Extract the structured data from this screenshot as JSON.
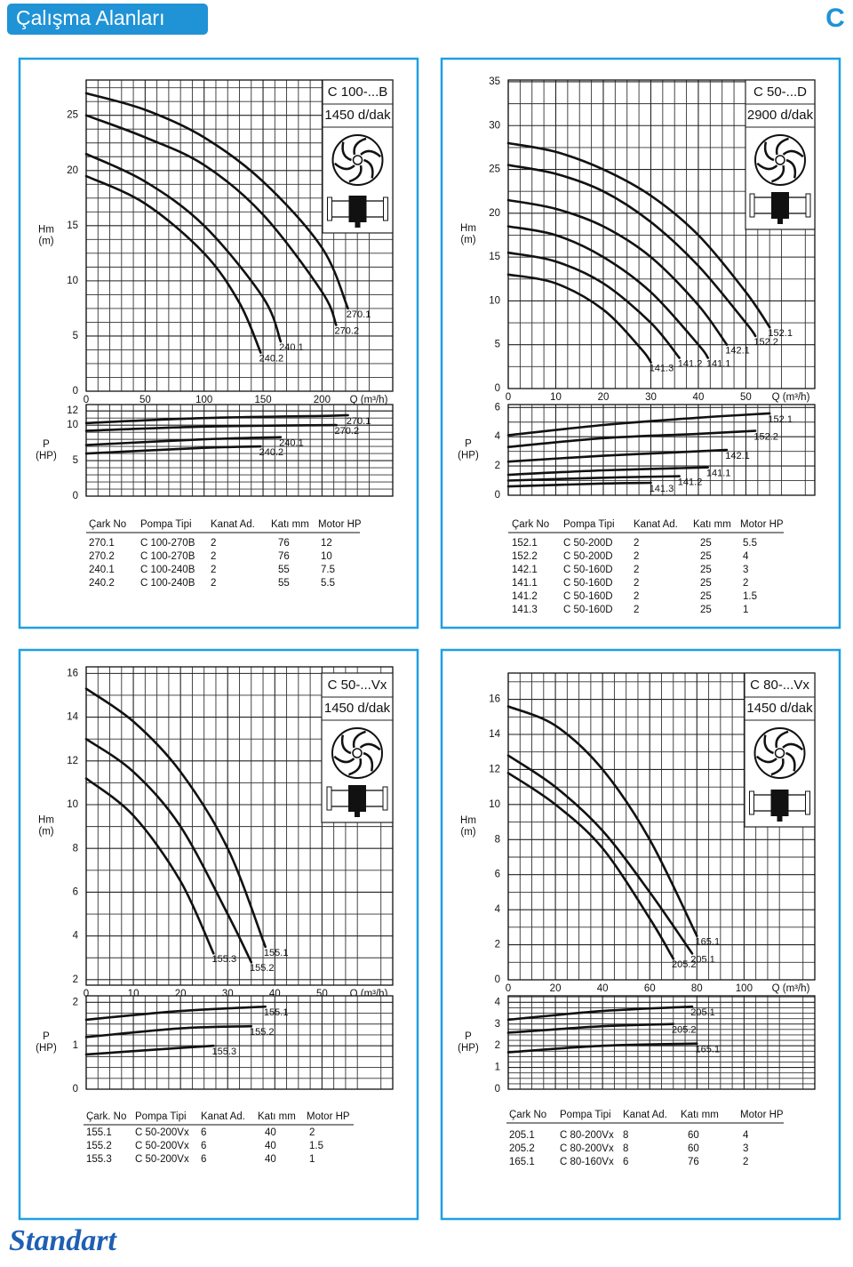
{
  "header": {
    "title": "Çalışma Alanları",
    "section": "C"
  },
  "footer": {
    "logo": "Standart"
  },
  "chart_data": [
    {
      "type": "line",
      "title": "C 100-...B",
      "subtitle": "1450 d/dak",
      "y_label": [
        "Hm",
        "(m)"
      ],
      "x_label": "Q (m³/h)",
      "xlim": [
        0,
        260
      ],
      "xticks": [
        0,
        50,
        100,
        150,
        200
      ],
      "ylim": [
        0,
        28.2
      ],
      "yticks": [
        0,
        5,
        10,
        15,
        20,
        25
      ],
      "grid": true,
      "color": "#111111",
      "series": [
        {
          "name": "270.1",
          "x": [
            0,
            50,
            100,
            150,
            200,
            222
          ],
          "values": [
            27,
            25.5,
            23,
            19,
            13,
            7.5
          ]
        },
        {
          "name": "270.2",
          "x": [
            0,
            50,
            100,
            150,
            200,
            212
          ],
          "values": [
            25,
            23,
            20.5,
            16,
            9,
            6
          ]
        },
        {
          "name": "240.1",
          "x": [
            0,
            50,
            100,
            150,
            165
          ],
          "values": [
            21.5,
            19,
            15,
            8.5,
            4.5
          ]
        },
        {
          "name": "240.2",
          "x": [
            0,
            50,
            100,
            130,
            148
          ],
          "values": [
            19.5,
            17,
            12.5,
            8,
            3.5
          ]
        }
      ]
    },
    {
      "type": "line",
      "y_label": [
        "P",
        "(HP)"
      ],
      "xlim": [
        0,
        260
      ],
      "ylim": [
        0,
        12.9
      ],
      "yticks": [
        0,
        5,
        10,
        12
      ],
      "grid": true,
      "color": "#111111",
      "series": [
        {
          "name": "270.1",
          "x": [
            0,
            100,
            200,
            222
          ],
          "values": [
            10.3,
            11,
            11.3,
            11.4
          ]
        },
        {
          "name": "270.2",
          "x": [
            0,
            100,
            200,
            212
          ],
          "values": [
            9.2,
            9.8,
            10,
            10
          ]
        },
        {
          "name": "240.1",
          "x": [
            0,
            100,
            165
          ],
          "values": [
            7.2,
            8,
            8.3
          ]
        },
        {
          "name": "240.2",
          "x": [
            0,
            100,
            148
          ],
          "values": [
            6,
            6.8,
            7
          ]
        }
      ]
    },
    {
      "type": "line",
      "title": "C 50-...D",
      "subtitle": "2900 d/dak",
      "y_label": [
        "Hm",
        "(m)"
      ],
      "x_label": "Q (m³/h)",
      "xlim": [
        0,
        64.5
      ],
      "xticks": [
        0,
        10,
        20,
        30,
        40,
        50
      ],
      "ylim": [
        0,
        35.2
      ],
      "yticks": [
        0,
        5,
        10,
        15,
        20,
        25,
        30,
        35
      ],
      "grid": true,
      "color": "#111111",
      "series": [
        {
          "name": "152.1",
          "x": [
            0,
            10,
            20,
            30,
            40,
            50,
            55
          ],
          "values": [
            28,
            27,
            25,
            22,
            17.5,
            11,
            7
          ]
        },
        {
          "name": "152.2",
          "x": [
            0,
            10,
            20,
            30,
            40,
            50,
            52
          ],
          "values": [
            25.5,
            24.5,
            22.5,
            19,
            14,
            7.5,
            6
          ]
        },
        {
          "name": "142.1",
          "x": [
            0,
            10,
            20,
            30,
            40,
            46
          ],
          "values": [
            21.5,
            20.5,
            18.5,
            15,
            9.5,
            5
          ]
        },
        {
          "name": "141.1",
          "x": [
            0,
            10,
            20,
            30,
            40,
            42
          ],
          "values": [
            18.5,
            17.5,
            15,
            11,
            5,
            3.5
          ]
        },
        {
          "name": "141.2",
          "x": [
            0,
            10,
            20,
            30,
            36
          ],
          "values": [
            15.5,
            14.5,
            12,
            7.5,
            3.5
          ]
        },
        {
          "name": "141.3",
          "x": [
            0,
            10,
            20,
            28,
            30
          ],
          "values": [
            13,
            12,
            9,
            4.5,
            3
          ]
        }
      ]
    },
    {
      "type": "line",
      "y_label": [
        "P",
        "(HP)"
      ],
      "xlim": [
        0,
        64.5
      ],
      "ylim": [
        0,
        6.2
      ],
      "yticks": [
        0,
        2,
        4,
        6
      ],
      "grid": true,
      "color": "#111111",
      "series": [
        {
          "name": "152.1",
          "x": [
            0,
            20,
            40,
            55
          ],
          "values": [
            4.1,
            4.8,
            5.3,
            5.6
          ]
        },
        {
          "name": "152.2",
          "x": [
            0,
            20,
            40,
            52
          ],
          "values": [
            3.3,
            3.9,
            4.2,
            4.4
          ]
        },
        {
          "name": "142.1",
          "x": [
            0,
            20,
            40,
            46
          ],
          "values": [
            2.3,
            2.7,
            3,
            3.1
          ]
        },
        {
          "name": "141.1",
          "x": [
            0,
            20,
            42
          ],
          "values": [
            1.4,
            1.7,
            1.9
          ]
        },
        {
          "name": "141.2",
          "x": [
            0,
            20,
            36
          ],
          "values": [
            1,
            1.2,
            1.3
          ]
        },
        {
          "name": "141.3",
          "x": [
            0,
            20,
            30
          ],
          "values": [
            0.6,
            0.8,
            0.85
          ]
        }
      ]
    },
    {
      "type": "line",
      "title": "C 50-...Vx",
      "subtitle": "1450 d/dak",
      "y_label": [
        "Hm",
        "(m)"
      ],
      "x_label": "Q (m³/h)",
      "xlim": [
        0,
        65
      ],
      "xticks": [
        0,
        10,
        20,
        30,
        40,
        50
      ],
      "ylim": [
        1.75,
        16.3
      ],
      "yticks": [
        2,
        4,
        6,
        8,
        10,
        12,
        14,
        16
      ],
      "grid": true,
      "color": "#111111",
      "series": [
        {
          "name": "155.1",
          "x": [
            0,
            10,
            20,
            30,
            38
          ],
          "values": [
            15.3,
            13.8,
            11.5,
            8,
            3.5
          ]
        },
        {
          "name": "155.2",
          "x": [
            0,
            10,
            20,
            30,
            35
          ],
          "values": [
            13,
            11.5,
            9,
            5,
            2.8
          ]
        },
        {
          "name": "155.3",
          "x": [
            0,
            10,
            20,
            27
          ],
          "values": [
            11.2,
            9.5,
            6.5,
            3.2
          ]
        }
      ]
    },
    {
      "type": "line",
      "y_label": [
        "P",
        "(HP)"
      ],
      "xlim": [
        0,
        65
      ],
      "ylim": [
        0,
        2.15
      ],
      "yticks": [
        0,
        1,
        2
      ],
      "grid": true,
      "color": "#111111",
      "series": [
        {
          "name": "155.1",
          "x": [
            0,
            20,
            38
          ],
          "values": [
            1.6,
            1.8,
            1.9
          ]
        },
        {
          "name": "155.2",
          "x": [
            0,
            20,
            35
          ],
          "values": [
            1.2,
            1.4,
            1.45
          ]
        },
        {
          "name": "155.3",
          "x": [
            0,
            20,
            27
          ],
          "values": [
            0.8,
            0.95,
            1
          ]
        }
      ]
    },
    {
      "type": "line",
      "title": "C 80-...Vx",
      "subtitle": "1450 d/dak",
      "y_label": [
        "Hm",
        "(m)"
      ],
      "x_label": "Q (m³/h)",
      "xlim": [
        0,
        130
      ],
      "xticks": [
        0,
        20,
        40,
        60,
        80,
        100
      ],
      "ylim": [
        0,
        17.5
      ],
      "yticks": [
        0,
        2,
        4,
        6,
        8,
        10,
        12,
        14,
        16
      ],
      "grid": true,
      "color": "#111111",
      "series": [
        {
          "name": "165.1",
          "x": [
            0,
            20,
            40,
            60,
            80
          ],
          "values": [
            15.6,
            14.5,
            12,
            8,
            2.5
          ]
        },
        {
          "name": "205.1",
          "x": [
            0,
            20,
            40,
            60,
            78
          ],
          "values": [
            12.8,
            11,
            8.5,
            5,
            1.5
          ]
        },
        {
          "name": "205.2",
          "x": [
            0,
            20,
            40,
            60,
            70
          ],
          "values": [
            11.8,
            10,
            7.5,
            3.5,
            1.2
          ]
        }
      ]
    },
    {
      "type": "line",
      "y_label": [
        "P",
        "(HP)"
      ],
      "xlim": [
        0,
        130
      ],
      "ylim": [
        0,
        4.3
      ],
      "yticks": [
        0,
        1,
        2,
        3,
        4
      ],
      "grid": true,
      "color": "#111111",
      "series": [
        {
          "name": "205.1",
          "x": [
            0,
            40,
            78
          ],
          "values": [
            3.2,
            3.6,
            3.8
          ]
        },
        {
          "name": "205.2",
          "x": [
            0,
            40,
            70
          ],
          "values": [
            2.6,
            2.9,
            3
          ]
        },
        {
          "name": "165.1",
          "x": [
            0,
            40,
            80
          ],
          "values": [
            1.7,
            2,
            2.1
          ]
        }
      ]
    }
  ],
  "tables": [
    {
      "columns": [
        "Çark No",
        "Pompa Tipi",
        "Kanat Ad.",
        "Katı mm",
        "Motor HP"
      ],
      "rows": [
        [
          "270.1",
          "C 100-270B",
          "2",
          "76",
          "12"
        ],
        [
          "270.2",
          "C 100-270B",
          "2",
          "76",
          "10"
        ],
        [
          "240.1",
          "C 100-240B",
          "2",
          "55",
          "7.5"
        ],
        [
          "240.2",
          "C 100-240B",
          "2",
          "55",
          "5.5"
        ]
      ]
    },
    {
      "columns": [
        "Çark No",
        "Pompa Tipi",
        "Kanat Ad.",
        "Katı mm",
        "Motor HP"
      ],
      "rows": [
        [
          "152.1",
          "C 50-200D",
          "2",
          "25",
          "5.5"
        ],
        [
          "152.2",
          "C 50-200D",
          "2",
          "25",
          "4"
        ],
        [
          "142.1",
          "C 50-160D",
          "2",
          "25",
          "3"
        ],
        [
          "141.1",
          "C 50-160D",
          "2",
          "25",
          "2"
        ],
        [
          "141.2",
          "C 50-160D",
          "2",
          "25",
          "1.5"
        ],
        [
          "141.3",
          "C 50-160D",
          "2",
          "25",
          "1"
        ]
      ]
    },
    {
      "columns": [
        "Çark. No",
        "Pompa Tipi",
        "Kanat Ad.",
        "Katı mm",
        "Motor HP"
      ],
      "rows": [
        [
          "155.1",
          "C 50-200Vx",
          "6",
          "40",
          "2"
        ],
        [
          "155.2",
          "C 50-200Vx",
          "6",
          "40",
          "1.5"
        ],
        [
          "155.3",
          "C 50-200Vx",
          "6",
          "40",
          "1"
        ]
      ]
    },
    {
      "columns": [
        "Çark No",
        "Pompa Tipi",
        "Kanat Ad.",
        "Katı mm",
        "Motor HP"
      ],
      "rows": [
        [
          "205.1",
          "C 80-200Vx",
          "8",
          "60",
          "4"
        ],
        [
          "205.2",
          "C 80-200Vx",
          "8",
          "60",
          "3"
        ],
        [
          "165.1",
          "C 80-160Vx",
          "6",
          "76",
          "2"
        ]
      ]
    }
  ]
}
